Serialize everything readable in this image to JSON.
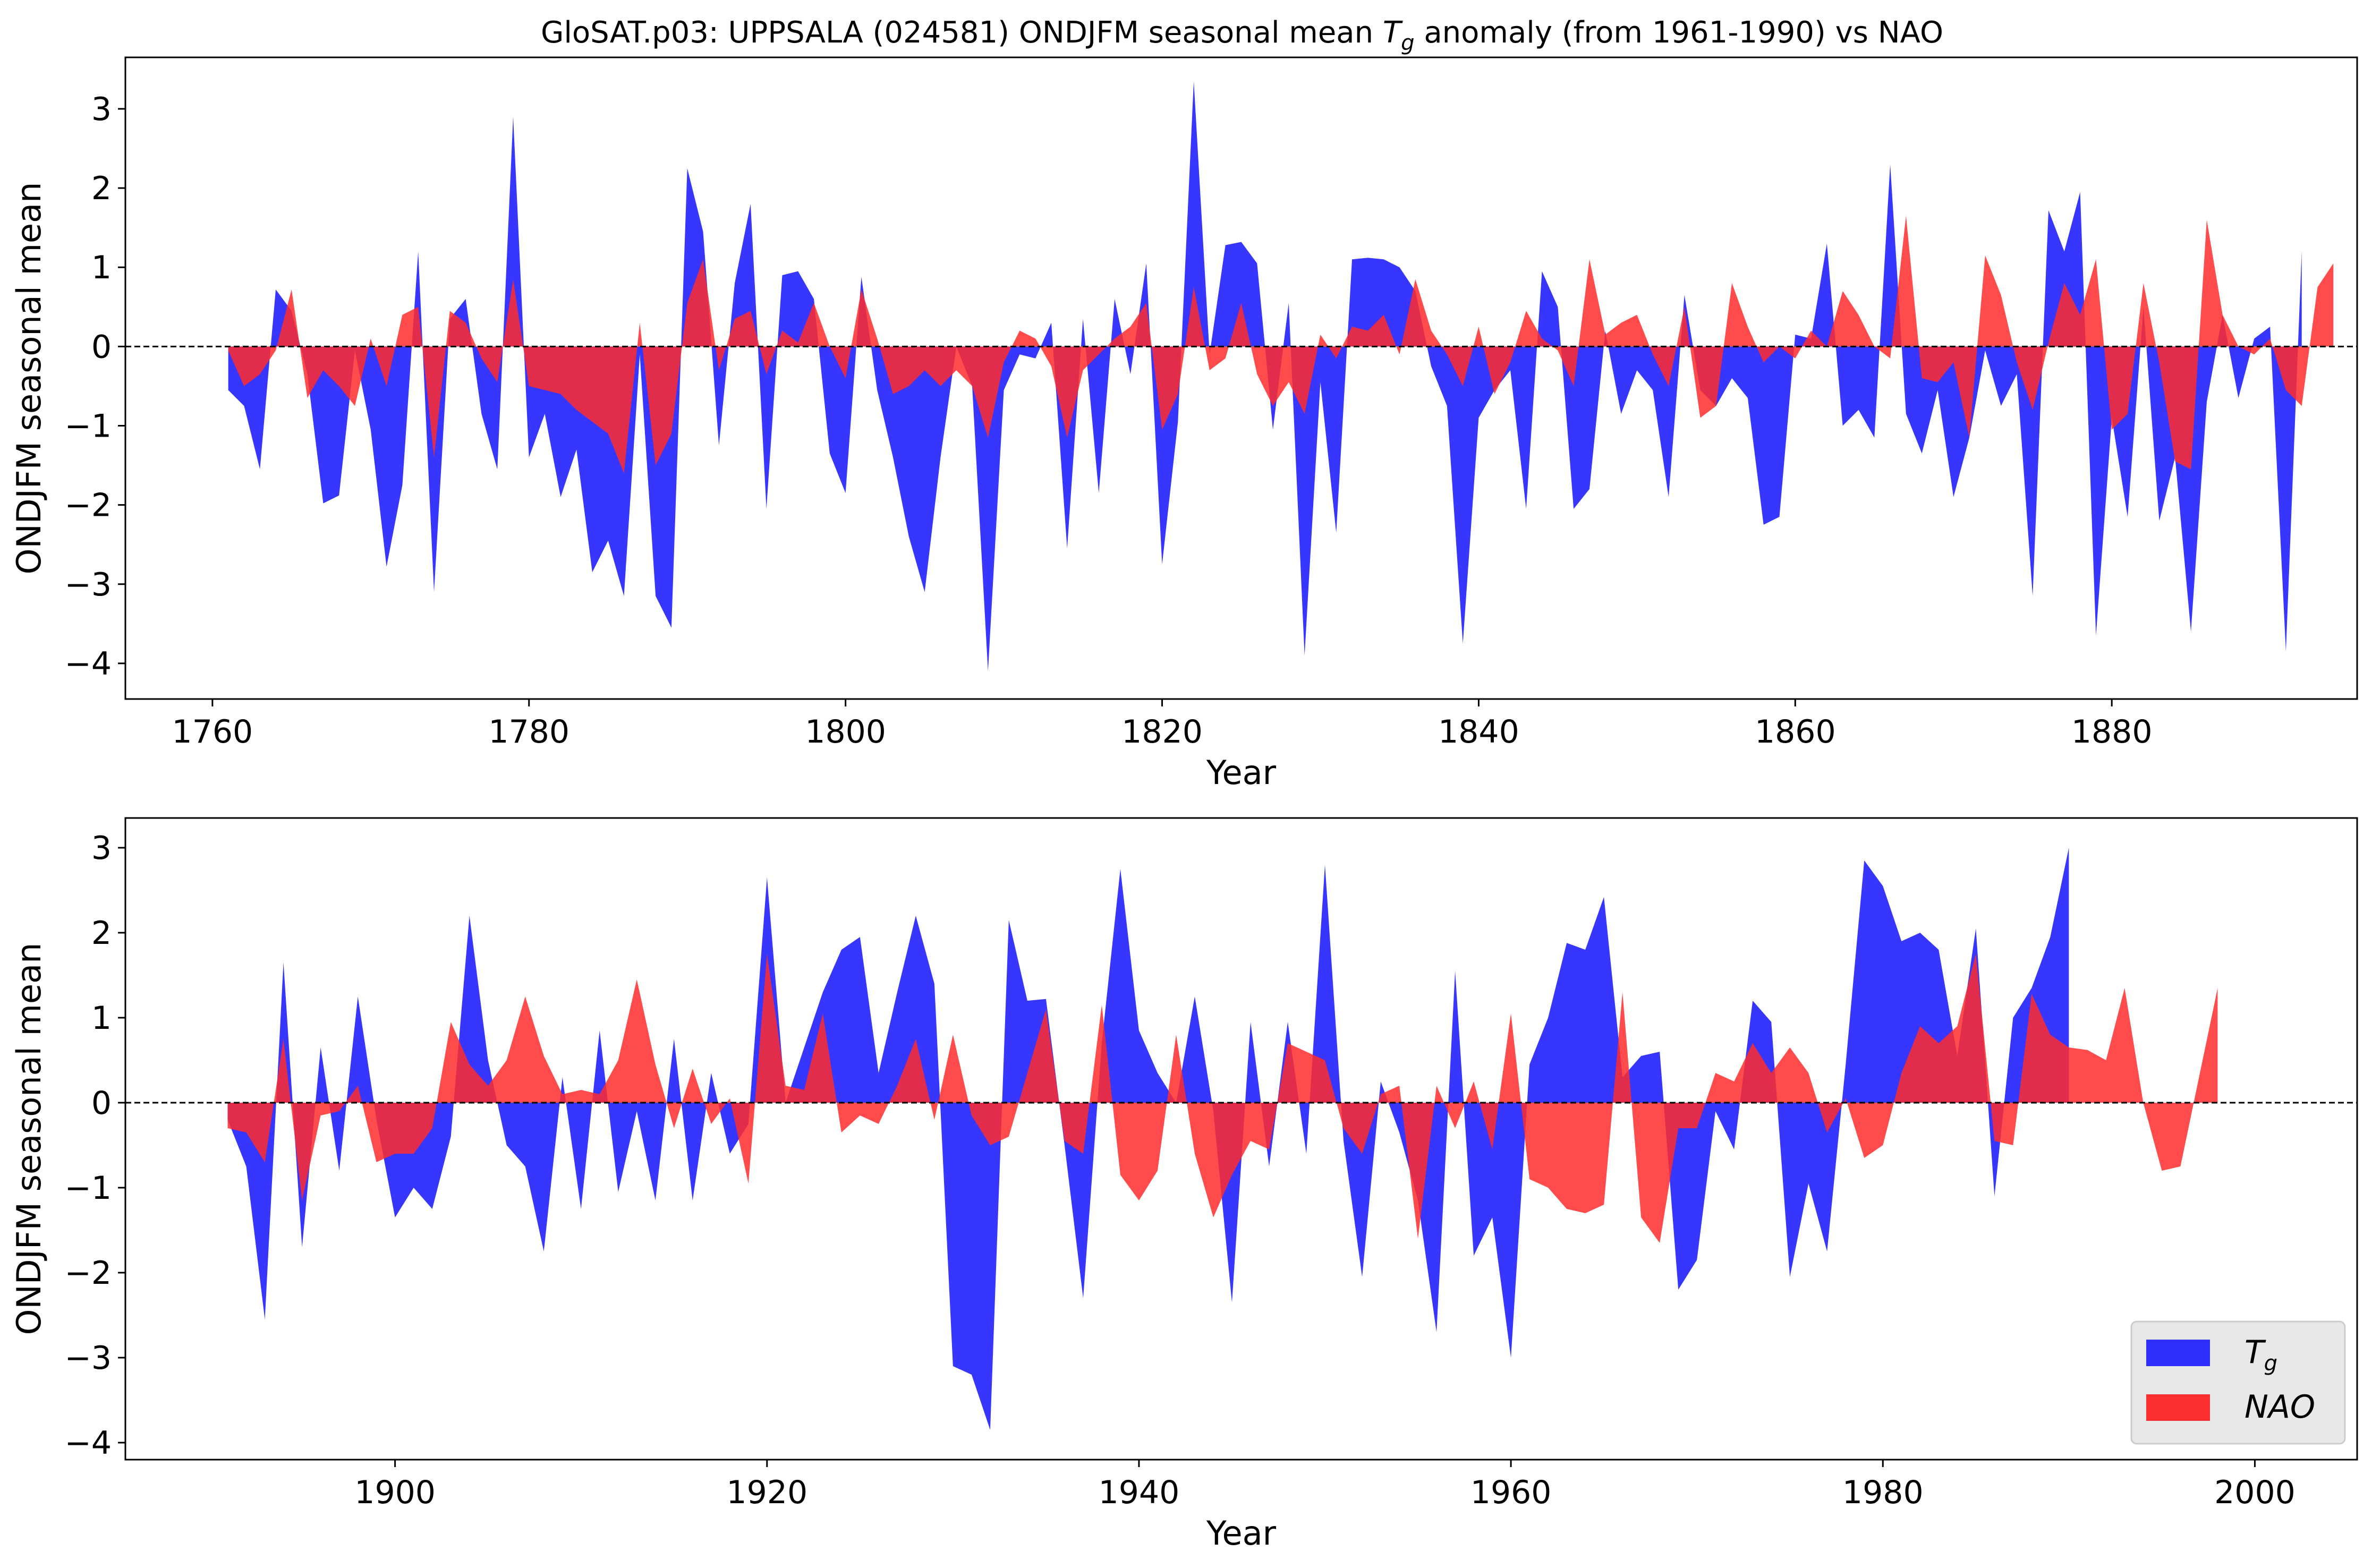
{
  "title_prefix": "GloSAT.p03: UPPSALA (024581) ONDJFM seasonal mean ",
  "title_var_main": "T",
  "title_var_sub": "g",
  "title_suffix": " anomaly (from 1961-1990) vs NAO",
  "legend": [
    {
      "name": "Tg",
      "main": "T",
      "sub": "g",
      "color": "#0000ff"
    },
    {
      "name": "NAO",
      "main": "NAO",
      "sub": "",
      "color": "#ff0000"
    }
  ],
  "colors": {
    "tg": "#2b2bff",
    "nao": "#ff2b2b",
    "overlap": "#d2002e",
    "zero_line": "#000000"
  },
  "chart_data": [
    {
      "type": "area",
      "xlabel": "Year",
      "ylabel": "ONDJFM seasonal mean",
      "xlim": [
        1754.5,
        1895.5
      ],
      "ylim": [
        -4.45,
        3.65
      ],
      "xticks": [
        1760,
        1780,
        1800,
        1820,
        1840,
        1860,
        1880
      ],
      "yticks": [
        -4,
        -3,
        -2,
        -1,
        0,
        1,
        2,
        3
      ],
      "zero_line": "dashed",
      "legend": "none",
      "x_start": 1761,
      "series": [
        {
          "name": "Tg",
          "values": [
            -0.55,
            -0.75,
            -1.55,
            0.72,
            0.45,
            -0.35,
            -1.98,
            -1.88,
            -0.05,
            -1.05,
            -2.78,
            -1.75,
            1.2,
            -3.1,
            0.35,
            0.6,
            -0.85,
            -1.55,
            2.9,
            -1.4,
            -0.85,
            -1.9,
            -1.3,
            -2.85,
            -2.45,
            -3.15,
            -0.1,
            -3.15,
            -3.55,
            2.25,
            1.45,
            -1.25,
            0.8,
            1.8,
            -2.05,
            0.9,
            0.95,
            0.6,
            -1.35,
            -1.85,
            0.88,
            -0.55,
            -1.4,
            -2.4,
            -3.1,
            -1.4,
            0.0,
            -0.5,
            -4.1,
            -0.55,
            -0.1,
            -0.15,
            0.3,
            -2.55,
            0.35,
            -1.85,
            0.6,
            -0.35,
            1.05,
            -2.75,
            -0.95,
            3.35,
            -0.1,
            1.28,
            1.32,
            1.05,
            -1.05,
            0.55,
            -3.9,
            -0.45,
            -2.35,
            1.1,
            1.12,
            1.1,
            1.0,
            0.7,
            -0.25,
            -0.75,
            -3.75,
            -0.9,
            -0.55,
            -0.3,
            -2.05,
            0.95,
            0.5,
            -2.05,
            -1.8,
            0.2,
            -0.85,
            -0.3,
            -0.55,
            -1.9,
            0.65,
            -0.55,
            -0.75,
            -0.4,
            -0.65,
            -2.25,
            -2.15,
            0.15,
            0.1,
            1.3,
            -1.0,
            -0.8,
            -1.15,
            2.3,
            -0.85,
            -1.35,
            -0.55,
            -1.9,
            -1.15,
            -0.05,
            -0.75,
            -0.35,
            -3.15,
            1.72,
            1.2,
            1.95,
            -3.65,
            -0.9,
            -2.15,
            0.5,
            -2.2,
            -1.4,
            -3.6,
            -0.7,
            0.4,
            -0.65,
            0.1,
            0.25,
            -3.85,
            1.2
          ]
        },
        {
          "name": "NAO",
          "values": [
            -0.05,
            -0.5,
            -0.35,
            -0.05,
            0.72,
            -0.65,
            -0.3,
            -0.5,
            -0.75,
            0.1,
            -0.5,
            0.4,
            0.5,
            -1.4,
            0.45,
            0.3,
            -0.15,
            -0.45,
            0.85,
            -0.5,
            -0.55,
            -0.6,
            -0.8,
            -0.95,
            -1.1,
            -1.6,
            0.3,
            -1.5,
            -1.1,
            0.55,
            1.1,
            -0.3,
            0.35,
            0.45,
            -0.35,
            0.2,
            0.05,
            0.55,
            0.0,
            -0.4,
            0.72,
            0.1,
            -0.6,
            -0.5,
            -0.3,
            -0.5,
            -0.3,
            -0.5,
            -1.15,
            -0.2,
            0.2,
            0.1,
            -0.25,
            -1.15,
            -0.3,
            -0.1,
            0.1,
            0.25,
            0.55,
            -1.05,
            -0.6,
            0.75,
            -0.3,
            -0.15,
            0.55,
            -0.35,
            -0.75,
            -0.45,
            -0.85,
            0.15,
            -0.15,
            0.25,
            0.2,
            0.4,
            -0.1,
            0.85,
            0.2,
            -0.1,
            -0.5,
            0.25,
            -0.6,
            -0.2,
            0.45,
            0.1,
            -0.05,
            -0.5,
            1.1,
            0.15,
            0.3,
            0.4,
            -0.1,
            -0.5,
            0.5,
            -0.9,
            -0.75,
            0.8,
            0.25,
            -0.2,
            0.0,
            -0.15,
            0.2,
            0.0,
            0.7,
            0.4,
            0.0,
            -0.15,
            1.65,
            -0.4,
            -0.45,
            -0.2,
            -1.15,
            1.15,
            0.65,
            -0.2,
            -0.8,
            0.05,
            0.8,
            0.4,
            1.1,
            -1.05,
            -0.85,
            0.8,
            -0.2,
            -1.45,
            -1.55,
            1.6,
            0.4,
            0.0,
            -0.1,
            0.1,
            -0.55,
            -0.75,
            0.75,
            1.05
          ]
        }
      ]
    },
    {
      "type": "area",
      "xlabel": "Year",
      "ylabel": "ONDJFM seasonal mean",
      "xlim": [
        1885.5,
        2005.5
      ],
      "ylim": [
        -4.2,
        3.35
      ],
      "xticks": [
        1900,
        1920,
        1940,
        1960,
        1980,
        2000
      ],
      "yticks": [
        -4,
        -3,
        -2,
        -1,
        0,
        1,
        2,
        3
      ],
      "zero_line": "dashed",
      "legend": "bottom-right",
      "x_start": 1891,
      "series": [
        {
          "name": "Tg",
          "values": [
            -0.2,
            -0.75,
            -2.55,
            1.65,
            -1.7,
            0.65,
            -0.8,
            1.25,
            -0.2,
            -1.35,
            -1.0,
            -1.25,
            -0.4,
            2.2,
            0.5,
            -0.5,
            -0.75,
            -1.75,
            0.3,
            -1.25,
            0.85,
            -1.05,
            -0.1,
            -1.15,
            0.75,
            -1.15,
            0.35,
            -0.6,
            -0.25,
            2.65,
            0.0,
            0.65,
            1.3,
            1.8,
            1.95,
            0.35,
            1.3,
            2.2,
            1.4,
            -3.1,
            -3.2,
            -3.85,
            2.15,
            1.2,
            1.22,
            -0.5,
            -2.3,
            0.7,
            2.75,
            0.85,
            0.35,
            0.0,
            1.25,
            -0.1,
            -2.35,
            0.95,
            -0.75,
            0.95,
            -0.6,
            2.8,
            -0.45,
            -2.05,
            0.25,
            -0.35,
            -1.15,
            -2.7,
            1.55,
            -1.8,
            -1.35,
            -3.0,
            0.45,
            1.0,
            1.88,
            1.8,
            2.42,
            0.3,
            0.55,
            0.6,
            -2.2,
            -1.85,
            -0.1,
            -0.55,
            1.2,
            0.95,
            -2.05,
            -0.95,
            -1.75,
            0.45,
            2.85,
            2.55,
            1.9,
            2.0,
            1.8,
            0.55,
            2.05,
            -1.1,
            1.0,
            1.35,
            1.95,
            3.0
          ]
        },
        {
          "name": "NAO",
          "values": [
            -0.3,
            -0.35,
            -0.7,
            0.75,
            -1.15,
            -0.15,
            -0.1,
            0.2,
            -0.7,
            -0.6,
            -0.6,
            -0.3,
            0.95,
            0.45,
            0.2,
            0.5,
            1.25,
            0.55,
            0.1,
            0.15,
            0.1,
            0.5,
            1.45,
            0.45,
            -0.3,
            0.4,
            -0.25,
            0.05,
            -0.95,
            1.75,
            0.2,
            0.15,
            1.05,
            -0.35,
            -0.15,
            -0.25,
            0.2,
            0.75,
            -0.2,
            0.8,
            -0.15,
            -0.5,
            -0.4,
            0.35,
            1.1,
            -0.45,
            -0.6,
            1.15,
            -0.85,
            -1.15,
            -0.8,
            0.8,
            -0.6,
            -1.35,
            -0.85,
            -0.45,
            -0.55,
            0.7,
            0.6,
            0.5,
            -0.3,
            -0.6,
            0.1,
            0.2,
            -1.6,
            0.2,
            -0.3,
            0.25,
            -0.55,
            1.05,
            -0.9,
            -1.0,
            -1.25,
            -1.3,
            -1.2,
            1.3,
            -1.35,
            -1.65,
            -0.3,
            -0.3,
            0.35,
            0.25,
            0.7,
            0.35,
            0.65,
            0.35,
            -0.35,
            0.05,
            -0.65,
            -0.5,
            0.35,
            0.9,
            0.7,
            0.9,
            1.75,
            -0.45,
            -0.5,
            1.28,
            0.8,
            0.65,
            0.62,
            0.5,
            1.35,
            0.0,
            -0.8,
            -0.75,
            0.3,
            1.35
          ]
        }
      ]
    }
  ]
}
